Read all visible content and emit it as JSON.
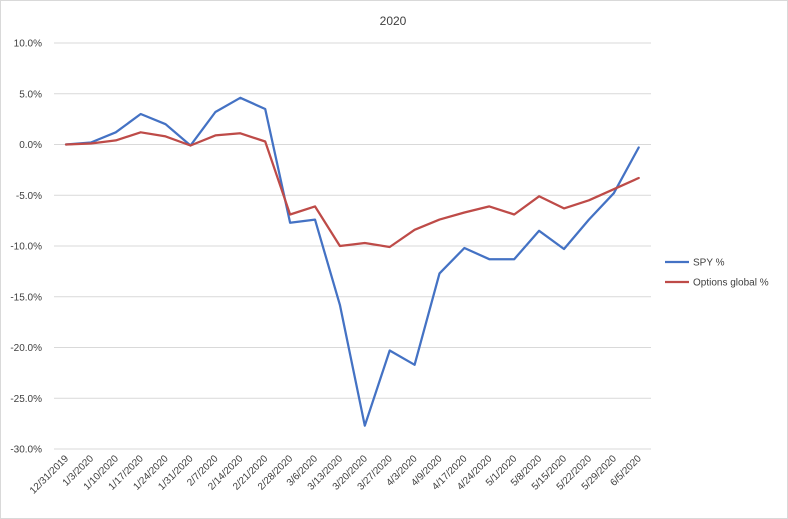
{
  "chart_data": {
    "type": "line",
    "title": "2020",
    "xlabel": "",
    "ylabel": "",
    "ylim": [
      -30,
      10
    ],
    "y_ticks": [
      "10.0%",
      "5.0%",
      "0.0%",
      "-5.0%",
      "-10.0%",
      "-15.0%",
      "-20.0%",
      "-25.0%",
      "-30.0%"
    ],
    "grid": true,
    "legend_position": "right",
    "categories": [
      "12/31/2019",
      "1/3/2020",
      "1/10/2020",
      "1/17/2020",
      "1/24/2020",
      "1/31/2020",
      "2/7/2020",
      "2/14/2020",
      "2/21/2020",
      "2/28/2020",
      "3/6/2020",
      "3/13/2020",
      "3/20/2020",
      "3/27/2020",
      "4/3/2020",
      "4/9/2020",
      "4/17/2020",
      "4/24/2020",
      "5/1/2020",
      "5/8/2020",
      "5/15/2020",
      "5/22/2020",
      "5/29/2020",
      "6/5/2020"
    ],
    "series": [
      {
        "name": "SPY %",
        "color": "#4472c4",
        "values": [
          0.0,
          0.2,
          1.2,
          3.0,
          2.0,
          -0.1,
          3.2,
          4.6,
          3.5,
          -7.7,
          -7.4,
          -15.8,
          -27.7,
          -20.3,
          -21.7,
          -12.7,
          -10.2,
          -11.3,
          -11.3,
          -8.5,
          -10.3,
          -7.4,
          -4.8,
          -0.3
        ]
      },
      {
        "name": "Options global %",
        "color": "#be4b48",
        "values": [
          0.0,
          0.1,
          0.4,
          1.2,
          0.8,
          -0.1,
          0.9,
          1.1,
          0.3,
          -6.9,
          -6.1,
          -10.0,
          -9.7,
          -10.1,
          -8.4,
          -7.4,
          -6.7,
          -6.1,
          -6.9,
          -5.1,
          -6.3,
          -5.5,
          -4.4,
          -3.3
        ]
      }
    ]
  }
}
